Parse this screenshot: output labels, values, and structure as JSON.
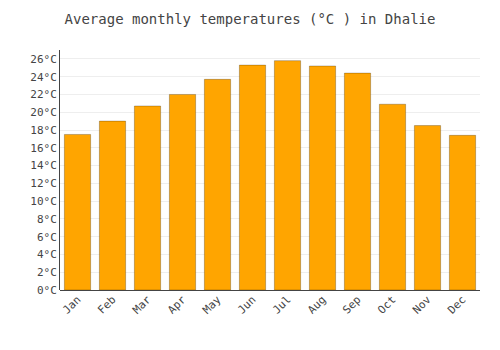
{
  "chart_data": {
    "type": "bar",
    "title": "Average monthly temperatures (°C ) in Dhalie",
    "categories": [
      "Jan",
      "Feb",
      "Mar",
      "Apr",
      "May",
      "Jun",
      "Jul",
      "Aug",
      "Sep",
      "Oct",
      "Nov",
      "Dec"
    ],
    "values": [
      17.5,
      19.0,
      20.7,
      22.0,
      23.7,
      25.3,
      25.8,
      25.2,
      24.4,
      20.9,
      18.5,
      17.4
    ],
    "color": "#FFA500",
    "ylim": [
      0,
      27
    ],
    "yticks": [
      {
        "value": 0,
        "label": "0°C"
      },
      {
        "value": 2,
        "label": "2°C"
      },
      {
        "value": 4,
        "label": "4°C"
      },
      {
        "value": 6,
        "label": "6°C"
      },
      {
        "value": 8,
        "label": "8°C"
      },
      {
        "value": 10,
        "label": "10°C"
      },
      {
        "value": 12,
        "label": "12°C"
      },
      {
        "value": 14,
        "label": "14°C"
      },
      {
        "value": 16,
        "label": "16°C"
      },
      {
        "value": 18,
        "label": "18°C"
      },
      {
        "value": 20,
        "label": "20°C"
      },
      {
        "value": 22,
        "label": "22°C"
      },
      {
        "value": 24,
        "label": "24°C"
      },
      {
        "value": 26,
        "label": "26°C"
      }
    ],
    "grid": true
  }
}
